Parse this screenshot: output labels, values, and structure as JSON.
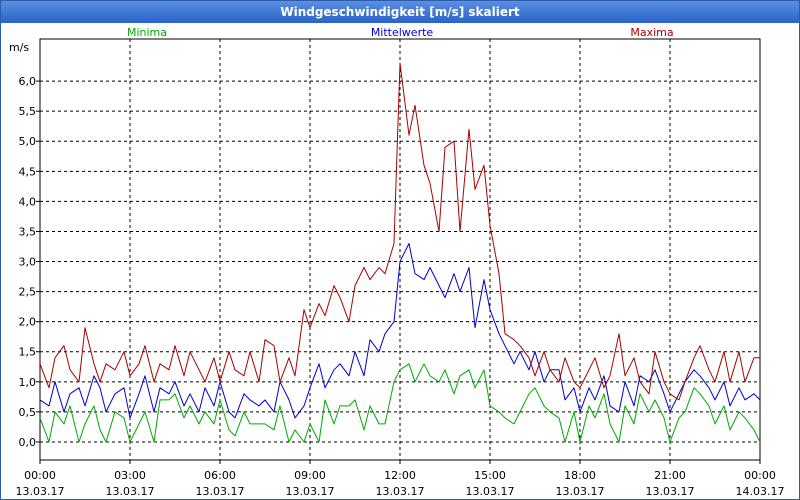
{
  "window": {
    "title": "Windgeschwindigkeit [m/s] skaliert"
  },
  "chart_data": {
    "type": "line",
    "title": "Windgeschwindigkeit [m/s] skaliert",
    "ylabel": "m/s",
    "xlabel": "",
    "ylim": [
      -0.3,
      6.7
    ],
    "xlim": [
      0,
      24
    ],
    "grid": true,
    "y_ticks": [
      {
        "value": 0.0,
        "label": "0,0"
      },
      {
        "value": 0.5,
        "label": "0,5"
      },
      {
        "value": 1.0,
        "label": "1,0"
      },
      {
        "value": 1.5,
        "label": "1,5"
      },
      {
        "value": 2.0,
        "label": "2,0"
      },
      {
        "value": 2.5,
        "label": "2,5"
      },
      {
        "value": 3.0,
        "label": "3,0"
      },
      {
        "value": 3.5,
        "label": "3,5"
      },
      {
        "value": 4.0,
        "label": "4,0"
      },
      {
        "value": 4.5,
        "label": "4,5"
      },
      {
        "value": 5.0,
        "label": "5,0"
      },
      {
        "value": 5.5,
        "label": "5,5"
      },
      {
        "value": 6.0,
        "label": "6,0"
      }
    ],
    "x_ticks": [
      {
        "hour": 0,
        "time": "00:00",
        "date": "13.03.17"
      },
      {
        "hour": 3,
        "time": "03:00",
        "date": "13.03.17"
      },
      {
        "hour": 6,
        "time": "06:00",
        "date": "13.03.17"
      },
      {
        "hour": 9,
        "time": "09:00",
        "date": "13.03.17"
      },
      {
        "hour": 12,
        "time": "12:00",
        "date": "13.03.17"
      },
      {
        "hour": 15,
        "time": "15:00",
        "date": "13.03.17"
      },
      {
        "hour": 18,
        "time": "18:00",
        "date": "13.03.17"
      },
      {
        "hour": 21,
        "time": "21:00",
        "date": "13.03.17"
      },
      {
        "hour": 24,
        "time": "00:00",
        "date": "14.03.17"
      }
    ],
    "series": [
      {
        "name": "Minima",
        "color": "#00aa00",
        "x": [
          0,
          0.3,
          0.5,
          0.8,
          1.0,
          1.3,
          1.5,
          1.8,
          2.0,
          2.2,
          2.5,
          2.8,
          3.0,
          3.3,
          3.5,
          3.8,
          4.0,
          4.3,
          4.5,
          4.8,
          5.0,
          5.3,
          5.5,
          5.8,
          6.0,
          6.3,
          6.5,
          6.8,
          7.0,
          7.3,
          7.5,
          7.8,
          8.0,
          8.3,
          8.5,
          8.8,
          9.0,
          9.3,
          9.5,
          9.8,
          10.0,
          10.3,
          10.5,
          10.8,
          11.0,
          11.3,
          11.5,
          11.8,
          12.0,
          12.3,
          12.5,
          12.8,
          13.0,
          13.3,
          13.5,
          13.8,
          14.0,
          14.3,
          14.5,
          14.8,
          15.0,
          15.3,
          15.5,
          15.8,
          16.0,
          16.3,
          16.5,
          16.8,
          17.0,
          17.3,
          17.5,
          17.8,
          18.0,
          18.3,
          18.5,
          18.8,
          19.0,
          19.3,
          19.5,
          19.8,
          20.0,
          20.3,
          20.5,
          20.8,
          21.0,
          21.3,
          21.5,
          21.8,
          22.0,
          22.3,
          22.5,
          22.8,
          23.0,
          23.3,
          23.5,
          23.8,
          24.0
        ],
        "values": [
          0.4,
          0.0,
          0.5,
          0.3,
          0.6,
          0.0,
          0.3,
          0.6,
          0.2,
          0.0,
          0.5,
          0.4,
          0.0,
          0.3,
          0.5,
          0.0,
          0.7,
          0.7,
          0.8,
          0.4,
          0.6,
          0.3,
          0.5,
          0.3,
          0.7,
          0.2,
          0.1,
          0.5,
          0.3,
          0.3,
          0.3,
          0.2,
          0.6,
          0.0,
          0.2,
          0.0,
          0.3,
          0.0,
          0.7,
          0.3,
          0.6,
          0.6,
          0.7,
          0.2,
          0.6,
          0.3,
          0.3,
          1.0,
          1.2,
          1.3,
          1.0,
          1.3,
          1.1,
          1.0,
          1.2,
          0.8,
          1.1,
          1.2,
          0.9,
          1.2,
          0.6,
          0.5,
          0.4,
          0.3,
          0.5,
          0.8,
          0.9,
          0.6,
          0.5,
          0.4,
          0.0,
          0.5,
          0.0,
          0.6,
          0.4,
          0.8,
          0.3,
          0.0,
          0.6,
          0.3,
          0.8,
          0.5,
          0.7,
          0.4,
          0.0,
          0.4,
          0.5,
          0.9,
          0.8,
          0.6,
          0.3,
          0.6,
          0.2,
          0.5,
          0.4,
          0.2,
          0.0
        ]
      },
      {
        "name": "Mittelwerte",
        "color": "#0000cc",
        "x": [
          0,
          0.3,
          0.5,
          0.8,
          1.0,
          1.3,
          1.5,
          1.8,
          2.0,
          2.2,
          2.5,
          2.8,
          3.0,
          3.3,
          3.5,
          3.8,
          4.0,
          4.3,
          4.5,
          4.8,
          5.0,
          5.3,
          5.5,
          5.8,
          6.0,
          6.3,
          6.5,
          6.8,
          7.0,
          7.3,
          7.5,
          7.8,
          8.0,
          8.3,
          8.5,
          8.8,
          9.0,
          9.3,
          9.5,
          9.8,
          10.0,
          10.3,
          10.5,
          10.8,
          11.0,
          11.3,
          11.5,
          11.8,
          12.0,
          12.3,
          12.5,
          12.8,
          13.0,
          13.3,
          13.5,
          13.8,
          14.0,
          14.3,
          14.5,
          14.8,
          15.0,
          15.3,
          15.5,
          15.8,
          16.0,
          16.3,
          16.5,
          16.8,
          17.0,
          17.3,
          17.5,
          17.8,
          18.0,
          18.3,
          18.5,
          18.8,
          19.0,
          19.3,
          19.5,
          19.8,
          20.0,
          20.3,
          20.5,
          20.8,
          21.0,
          21.3,
          21.5,
          21.8,
          22.0,
          22.3,
          22.5,
          22.8,
          23.0,
          23.3,
          23.5,
          23.8,
          24.0
        ],
        "values": [
          0.7,
          0.6,
          1.0,
          0.5,
          0.8,
          0.9,
          0.6,
          1.1,
          0.9,
          0.5,
          0.8,
          0.9,
          0.4,
          0.8,
          1.1,
          0.5,
          0.9,
          0.8,
          1.0,
          0.6,
          0.8,
          0.5,
          0.9,
          0.6,
          1.0,
          0.5,
          0.4,
          0.8,
          0.7,
          0.6,
          0.7,
          0.5,
          1.0,
          0.7,
          0.4,
          0.6,
          0.9,
          1.3,
          0.9,
          1.2,
          1.3,
          1.1,
          1.5,
          1.1,
          1.7,
          1.5,
          1.8,
          2.0,
          3.0,
          3.3,
          2.8,
          2.7,
          2.9,
          2.6,
          2.4,
          2.8,
          2.5,
          2.9,
          1.9,
          2.7,
          2.2,
          1.8,
          1.6,
          1.3,
          1.5,
          1.2,
          1.5,
          1.0,
          1.2,
          1.2,
          0.7,
          0.9,
          0.5,
          0.9,
          0.7,
          1.1,
          0.6,
          0.5,
          1.0,
          0.6,
          1.1,
          1.0,
          1.2,
          0.8,
          0.5,
          0.8,
          1.0,
          1.2,
          1.1,
          0.9,
          0.7,
          1.0,
          0.6,
          0.9,
          0.7,
          0.8,
          0.7
        ]
      },
      {
        "name": "Maxima",
        "color": "#aa0000",
        "x": [
          0,
          0.3,
          0.5,
          0.8,
          1.0,
          1.3,
          1.5,
          1.8,
          2.0,
          2.2,
          2.5,
          2.8,
          3.0,
          3.3,
          3.5,
          3.8,
          4.0,
          4.3,
          4.5,
          4.8,
          5.0,
          5.3,
          5.5,
          5.8,
          6.0,
          6.3,
          6.5,
          6.8,
          7.0,
          7.3,
          7.5,
          7.8,
          8.0,
          8.3,
          8.5,
          8.8,
          9.0,
          9.3,
          9.5,
          9.8,
          10.0,
          10.3,
          10.5,
          10.8,
          11.0,
          11.3,
          11.5,
          11.8,
          12.0,
          12.3,
          12.5,
          12.8,
          13.0,
          13.3,
          13.5,
          13.8,
          14.0,
          14.3,
          14.5,
          14.8,
          15.0,
          15.3,
          15.5,
          15.8,
          16.0,
          16.3,
          16.5,
          16.8,
          17.0,
          17.3,
          17.5,
          17.8,
          18.0,
          18.3,
          18.5,
          18.8,
          19.0,
          19.3,
          19.5,
          19.8,
          20.0,
          20.3,
          20.5,
          20.8,
          21.0,
          21.3,
          21.5,
          21.8,
          22.0,
          22.3,
          22.5,
          22.8,
          23.0,
          23.3,
          23.5,
          23.8,
          24.0
        ],
        "values": [
          1.3,
          0.9,
          1.4,
          1.6,
          1.2,
          1.0,
          1.9,
          1.3,
          1.0,
          1.3,
          1.2,
          1.5,
          1.1,
          1.3,
          1.6,
          1.0,
          1.3,
          1.2,
          1.6,
          1.1,
          1.5,
          1.2,
          1.0,
          1.4,
          1.0,
          1.5,
          1.2,
          1.1,
          1.5,
          1.0,
          1.7,
          1.6,
          1.0,
          1.4,
          1.1,
          2.2,
          1.9,
          2.3,
          2.1,
          2.6,
          2.4,
          2.0,
          2.6,
          2.9,
          2.7,
          2.9,
          2.8,
          3.3,
          6.3,
          5.1,
          5.6,
          4.6,
          4.3,
          3.5,
          4.9,
          5.0,
          3.5,
          5.2,
          4.2,
          4.6,
          3.6,
          2.8,
          1.8,
          1.7,
          1.6,
          1.4,
          1.1,
          1.5,
          1.2,
          1.0,
          1.4,
          1.0,
          0.9,
          1.2,
          1.4,
          0.9,
          1.1,
          1.8,
          1.1,
          1.4,
          1.0,
          0.8,
          1.5,
          1.0,
          0.8,
          0.7,
          1.0,
          1.4,
          1.6,
          1.2,
          1.0,
          1.5,
          1.0,
          1.5,
          1.0,
          1.4,
          1.4
        ]
      }
    ]
  }
}
